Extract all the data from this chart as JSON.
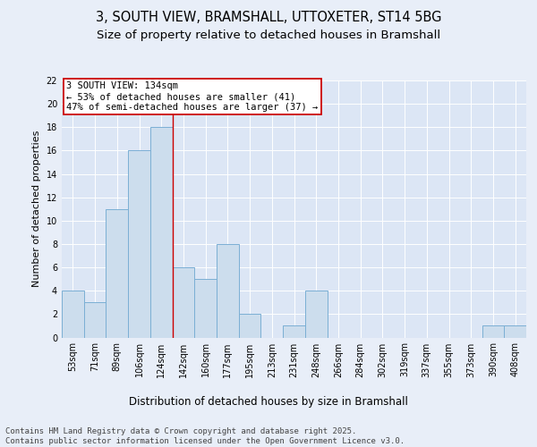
{
  "title1": "3, SOUTH VIEW, BRAMSHALL, UTTOXETER, ST14 5BG",
  "title2": "Size of property relative to detached houses in Bramshall",
  "xlabel": "Distribution of detached houses by size in Bramshall",
  "ylabel": "Number of detached properties",
  "categories": [
    "53sqm",
    "71sqm",
    "89sqm",
    "106sqm",
    "124sqm",
    "142sqm",
    "160sqm",
    "177sqm",
    "195sqm",
    "213sqm",
    "231sqm",
    "248sqm",
    "266sqm",
    "284sqm",
    "302sqm",
    "319sqm",
    "337sqm",
    "355sqm",
    "373sqm",
    "390sqm",
    "408sqm"
  ],
  "values": [
    4,
    3,
    11,
    16,
    18,
    6,
    5,
    8,
    2,
    0,
    1,
    4,
    0,
    0,
    0,
    0,
    0,
    0,
    0,
    1,
    1
  ],
  "bar_color": "#ccdded",
  "bar_edge_color": "#7bafd4",
  "highlight_line_color": "#cc0000",
  "highlight_line_index": 4,
  "annotation_title": "3 SOUTH VIEW: 134sqm",
  "annotation_line1": "← 53% of detached houses are smaller (41)",
  "annotation_line2": "47% of semi-detached houses are larger (37) →",
  "annotation_box_facecolor": "#ffffff",
  "annotation_box_edgecolor": "#cc0000",
  "ylim": [
    0,
    22
  ],
  "yticks": [
    0,
    2,
    4,
    6,
    8,
    10,
    12,
    14,
    16,
    18,
    20,
    22
  ],
  "fig_facecolor": "#e8eef8",
  "axes_facecolor": "#dce6f5",
  "title1_fontsize": 10.5,
  "title2_fontsize": 9.5,
  "xlabel_fontsize": 8.5,
  "ylabel_fontsize": 8,
  "tick_fontsize": 7,
  "annotation_fontsize": 7.5,
  "footer_fontsize": 6.5,
  "footer": "Contains HM Land Registry data © Crown copyright and database right 2025.\nContains public sector information licensed under the Open Government Licence v3.0."
}
